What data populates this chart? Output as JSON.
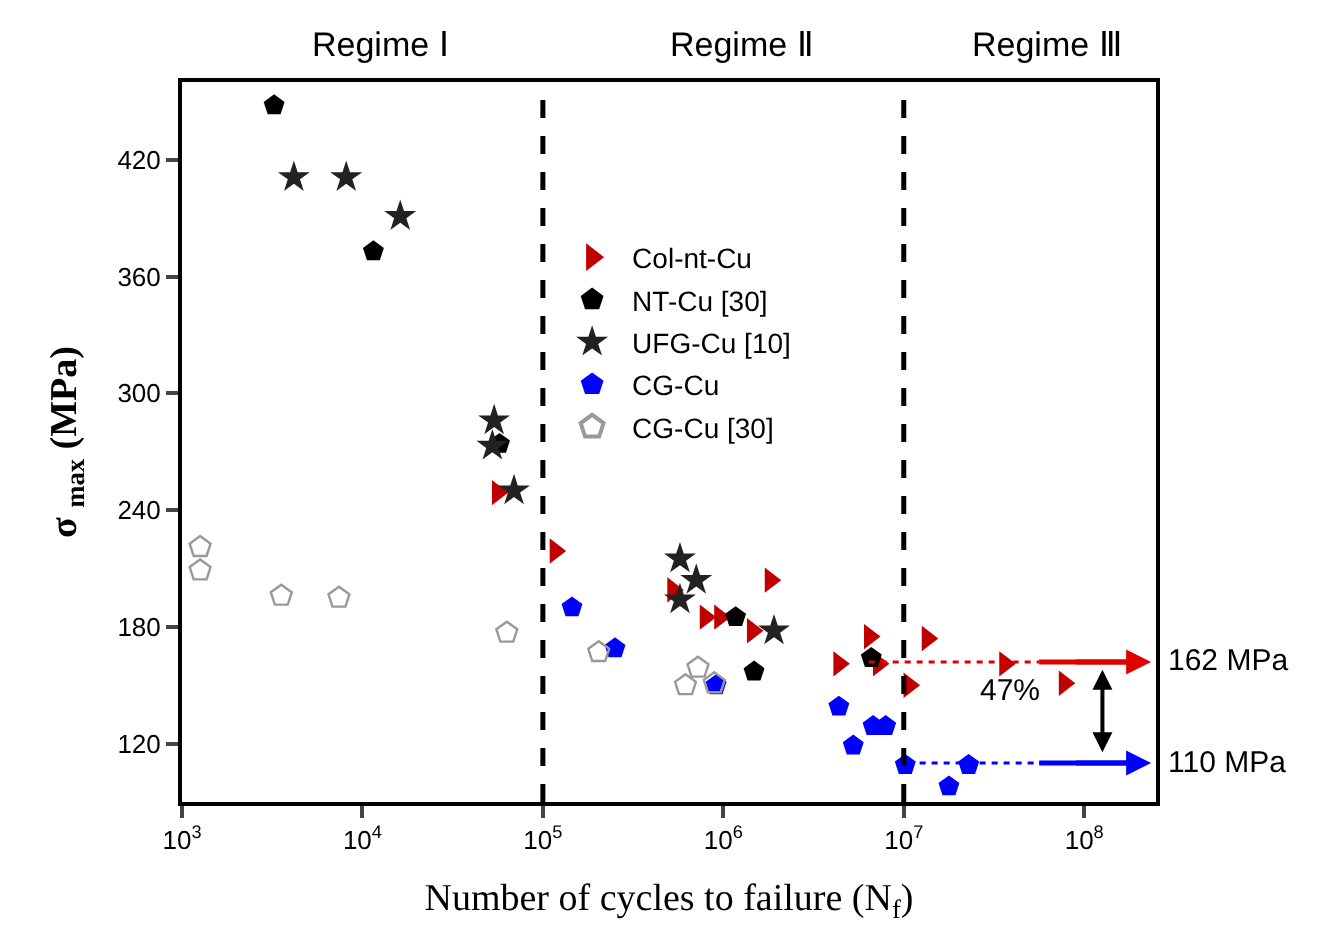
{
  "chart_data": {
    "type": "scatter",
    "xlabel": "Number of cycles to failure (N$_{f}$)",
    "ylabel": "σ $_{max}$ (MPa)",
    "log": "x",
    "grid": false,
    "legend": "top",
    "xlim": [
      1000,
      250000000
    ],
    "ylim": [
      90,
      460
    ],
    "xticks": [
      {
        "value": 1000,
        "label": "10$^{3}$"
      },
      {
        "value": 10000,
        "label": "10$^{4}$"
      },
      {
        "value": 100000,
        "label": "10$^{5}$"
      },
      {
        "value": 1000000,
        "label": "10$^{6}$"
      },
      {
        "value": 10000000,
        "label": "10$^{7}$"
      },
      {
        "value": 100000000,
        "label": "10$^{8}$"
      }
    ],
    "yticks": [
      120,
      180,
      240,
      300,
      360,
      420
    ],
    "ref_lines": [
      {
        "axis": "x",
        "value": 100000,
        "line_style": "dashed",
        "color": "#000000"
      },
      {
        "axis": "x",
        "value": 10000000,
        "line_style": "dashed",
        "color": "#000000"
      },
      {
        "axis": "y",
        "value": 162,
        "label": "162 MPa",
        "line_style": "dotted",
        "color": "#e00000"
      },
      {
        "axis": "y",
        "value": 110,
        "label": "110 MPa",
        "line_style": "dotted",
        "color": "#0000ff"
      }
    ],
    "annotations": [
      "Regime Ⅰ",
      "Regime Ⅱ",
      "Regime Ⅲ",
      "47%"
    ],
    "series": [
      {
        "name": "Col-nt-Cu",
        "color": "#c00000",
        "marker": "triangle",
        "x": [
          56000,
          117000,
          525000,
          794000,
          955000,
          1450000,
          1820000,
          4370000,
          6460000,
          7240000,
          10700000,
          13500000,
          36300000,
          77600000
        ],
        "values": [
          249,
          219,
          199,
          185,
          185,
          178,
          204,
          161,
          175,
          161,
          150,
          174,
          161,
          151
        ]
      },
      {
        "name": "NT-Cu [30]",
        "color": "#000000",
        "x": [
          3240,
          11500,
          57500,
          1170000,
          1480000,
          6610000
        ],
        "values": [
          448,
          373,
          274,
          185,
          157,
          164
        ]
      },
      {
        "name": "UFG-Cu [10]",
        "color": "#222222",
        "marker": "star",
        "x": [
          4170,
          8130,
          16200,
          53700,
          52500,
          69200,
          575000,
          708000,
          575000,
          1910000
        ],
        "values": [
          411,
          411,
          391,
          286,
          273,
          250,
          215,
          204,
          194,
          178
        ]
      },
      {
        "name": "CG-Cu",
        "color": "#0000ff",
        "x": [
          145000,
          251000,
          912000,
          4370000,
          5250000,
          6760000,
          7940000,
          10200000,
          22900000,
          17800000
        ],
        "values": [
          190,
          169,
          150,
          139,
          119,
          129,
          129,
          109,
          109,
          98
        ]
      },
      {
        "name": "CG-Cu [30]",
        "color": "#999999",
        "x": [
          1260,
          1260,
          3550,
          7410,
          63100,
          204000,
          617000,
          724000,
          891000
        ],
        "values": [
          221,
          209,
          196,
          195,
          177,
          167,
          150,
          159,
          151
        ]
      }
    ]
  }
}
